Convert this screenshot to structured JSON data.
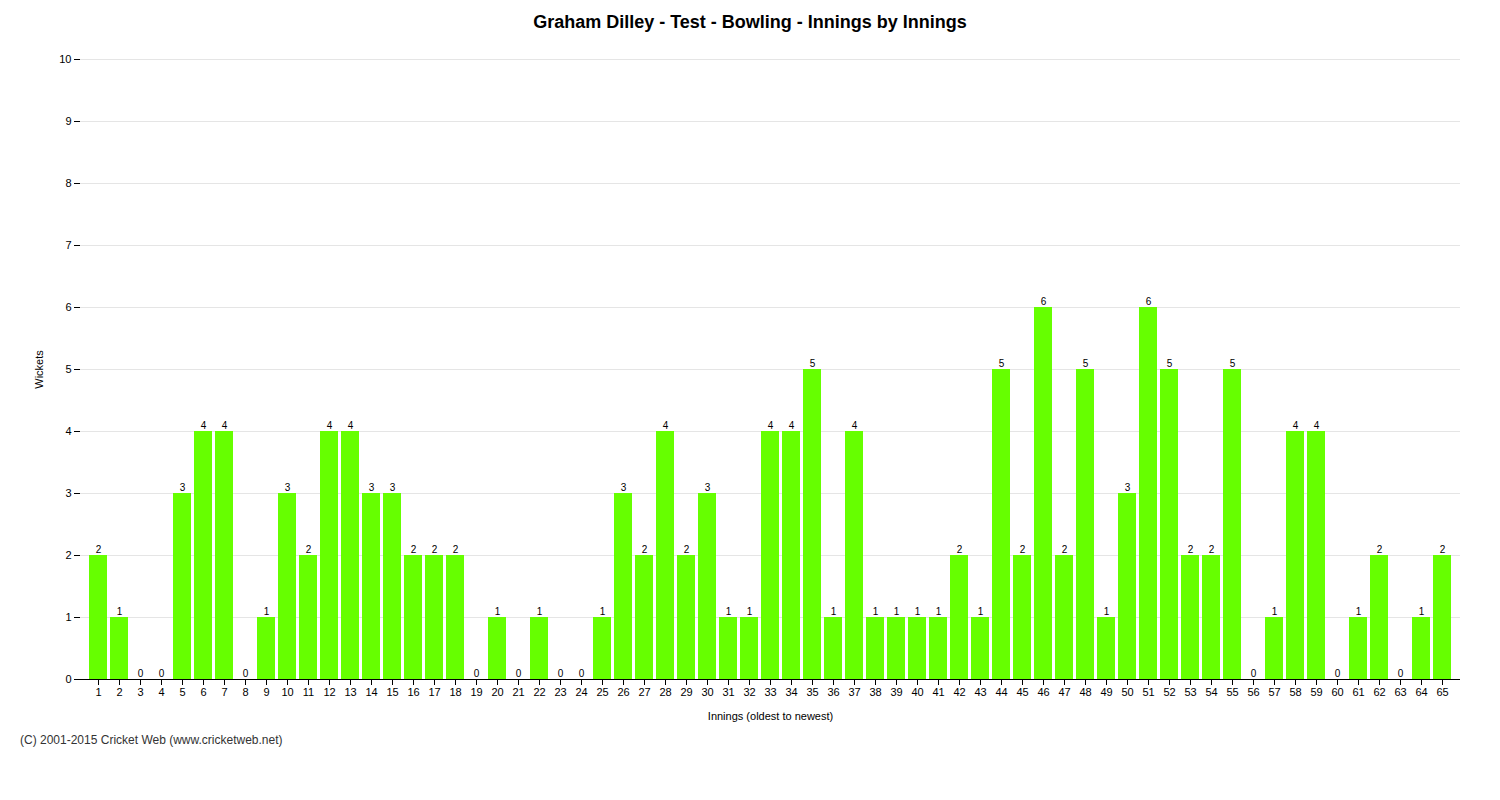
{
  "chart_data": {
    "type": "bar",
    "title": "Graham Dilley - Test - Bowling - Innings by Innings",
    "xlabel": "Innings (oldest to newest)",
    "ylabel": "Wickets",
    "footnote": "(C) 2001-2015 Cricket Web (www.cricketweb.net)",
    "categories": [
      "1",
      "2",
      "3",
      "4",
      "5",
      "6",
      "7",
      "8",
      "9",
      "10",
      "11",
      "12",
      "13",
      "14",
      "15",
      "16",
      "17",
      "18",
      "19",
      "20",
      "21",
      "22",
      "23",
      "24",
      "25",
      "26",
      "27",
      "28",
      "29",
      "30",
      "31",
      "32",
      "33",
      "34",
      "35",
      "36",
      "37",
      "38",
      "39",
      "40",
      "41",
      "42",
      "43",
      "44",
      "45",
      "46",
      "47",
      "48",
      "49",
      "50",
      "51",
      "52",
      "53",
      "54",
      "55",
      "56",
      "57",
      "58",
      "59",
      "60",
      "61",
      "62",
      "63",
      "64",
      "65"
    ],
    "values": [
      2,
      1,
      0,
      0,
      3,
      4,
      4,
      0,
      1,
      3,
      2,
      4,
      4,
      3,
      3,
      2,
      2,
      2,
      0,
      1,
      0,
      1,
      0,
      0,
      1,
      3,
      2,
      4,
      2,
      3,
      1,
      1,
      4,
      4,
      5,
      1,
      4,
      1,
      1,
      1,
      1,
      2,
      1,
      5,
      2,
      6,
      2,
      5,
      1,
      3,
      6,
      5,
      2,
      2,
      5,
      0,
      1,
      4,
      4,
      0,
      1,
      2,
      0,
      1,
      2
    ],
    "color": "#66ff00",
    "ylim": [
      0,
      10
    ],
    "yticks": [
      0,
      1,
      2,
      3,
      4,
      5,
      6,
      7,
      8,
      9,
      10
    ],
    "grid": true,
    "data_labels": true
  }
}
